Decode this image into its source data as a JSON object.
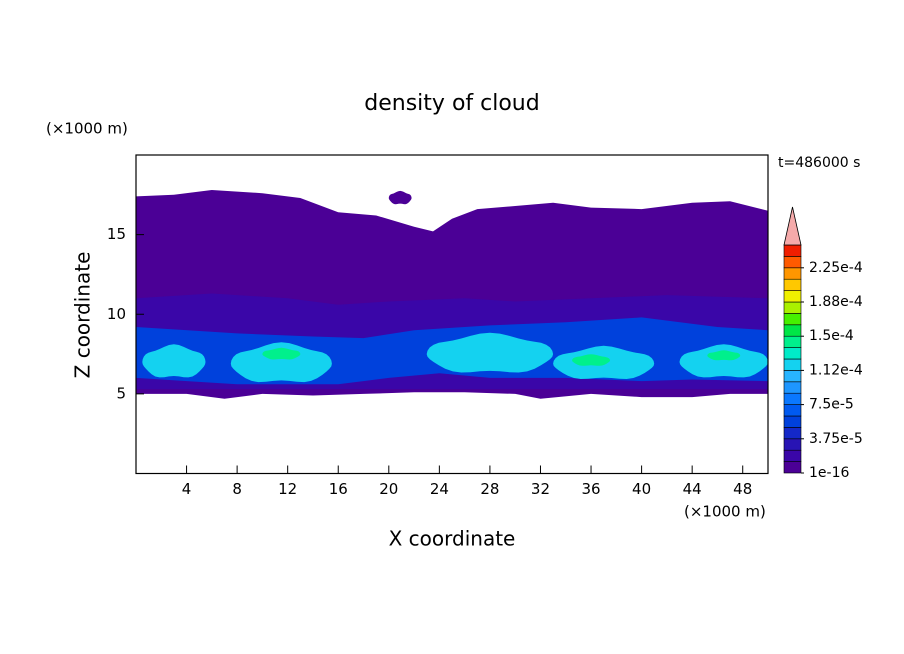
{
  "chart_data": {
    "type": "contour",
    "title": "density of cloud",
    "x_label": "X coordinate",
    "y_label": "Z coordinate",
    "x_unit": "(×1000 m)",
    "y_unit": "(×1000 m)",
    "time_label": "t=486000 s",
    "xlim": [
      0,
      50
    ],
    "ylim": [
      0,
      20
    ],
    "xticks": [
      4,
      8,
      12,
      16,
      20,
      24,
      28,
      32,
      36,
      40,
      44,
      48
    ],
    "yticks": [
      5,
      10,
      15
    ],
    "levels": [
      1e-16,
      1.25e-05,
      2.5e-05,
      3.75e-05,
      5e-05,
      6.25e-05,
      7.5e-05,
      8.75e-05,
      0.0001,
      0.0001125,
      0.000125,
      0.0001375,
      0.00015,
      0.0001625,
      0.000175,
      0.0001875,
      0.0002,
      0.0002125,
      0.000225,
      0.0002375,
      0.00025
    ],
    "colors": [
      "#4b0096",
      "#3a06a8",
      "#2814b4",
      "#1428c8",
      "#0041dc",
      "#005af0",
      "#0a78ff",
      "#1e96ff",
      "#28b4ff",
      "#14d2f0",
      "#00ebc8",
      "#00f08c",
      "#00e646",
      "#46f000",
      "#aaf000",
      "#f0f000",
      "#ffc800",
      "#ff9600",
      "#ff5a00",
      "#f01e00"
    ],
    "extend_color": "#f5aaaa",
    "cbar_ticks": [
      {
        "value": 1e-16,
        "label": "1e-16"
      },
      {
        "value": 3.75e-05,
        "label": "3.75e-5"
      },
      {
        "value": 7.5e-05,
        "label": "7.5e-5"
      },
      {
        "value": 0.0001125,
        "label": "1.12e-4"
      },
      {
        "value": 0.00015,
        "label": "1.5e-4"
      },
      {
        "value": 0.0001875,
        "label": "1.88e-4"
      },
      {
        "value": 0.000225,
        "label": "2.25e-4"
      }
    ]
  }
}
